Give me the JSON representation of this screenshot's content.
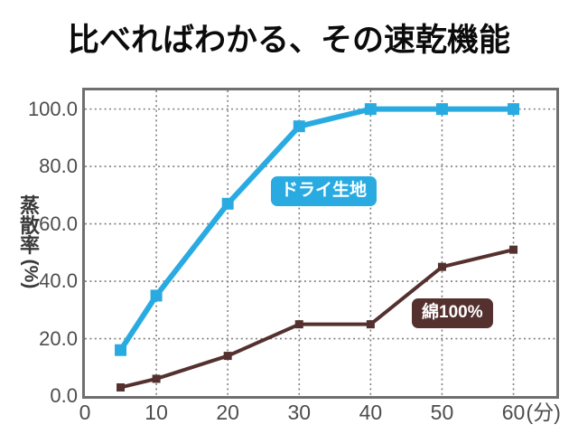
{
  "title": "比べればわかる、その速乾機能",
  "chart_data": {
    "type": "line",
    "title": "比べればわかる、その速乾機能",
    "ylabel": "蒸散率(%)",
    "xlabel": "",
    "x_unit_suffix": "(分)",
    "x_ticks": [
      0,
      10,
      20,
      30,
      40,
      50,
      60
    ],
    "x_tick_labels": [
      "0",
      "10",
      "20",
      "30",
      "40",
      "50",
      "60"
    ],
    "y_ticks": [
      0,
      20,
      40,
      60,
      80,
      100
    ],
    "y_tick_labels": [
      "0.0",
      "20.0",
      "40.0",
      "60.0",
      "80.0",
      "100.0"
    ],
    "xlim": [
      0,
      66
    ],
    "ylim": [
      0,
      106.5
    ],
    "grid": "dotted",
    "legend_position": "inline-labels-on-plot",
    "x": [
      5,
      10,
      20,
      30,
      40,
      50,
      60
    ],
    "series": [
      {
        "name": "ドライ生地",
        "color": "#29abe2",
        "values": [
          16,
          35,
          67,
          94,
          100,
          100,
          100
        ]
      },
      {
        "name": "綿100%",
        "color": "#54312f",
        "values": [
          3,
          6,
          14,
          25,
          25,
          45,
          51
        ]
      }
    ],
    "colors": {
      "grid": "#7f7f7f",
      "plot_border": "#6f6f6f",
      "tick_text": "#4d4d4d",
      "title_text": "#0b0b0b"
    }
  }
}
